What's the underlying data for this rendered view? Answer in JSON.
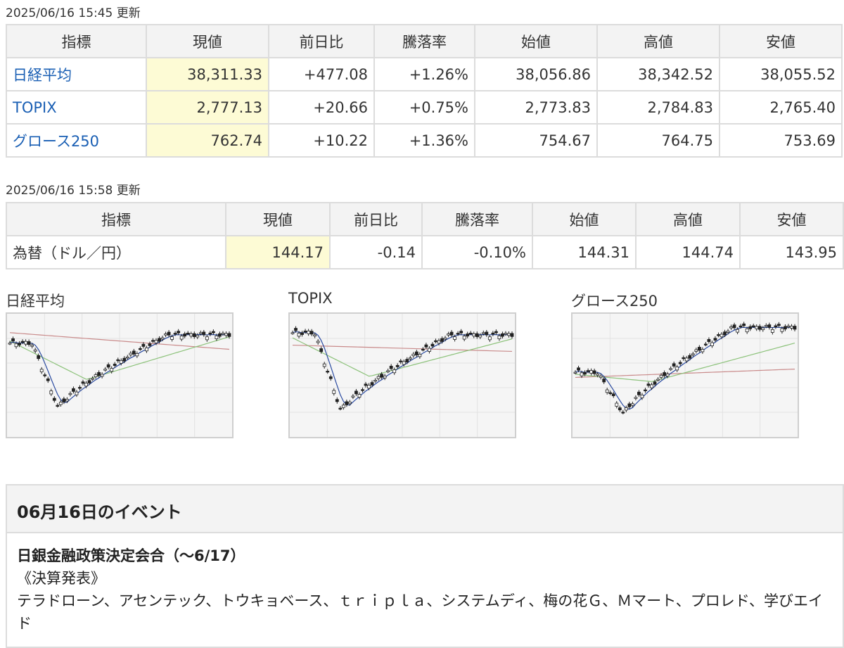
{
  "stock_table": {
    "timestamp": "2025/06/16 15:45 更新",
    "headers": [
      "指標",
      "現値",
      "前日比",
      "騰落率",
      "始値",
      "高値",
      "安値"
    ],
    "rows": [
      {
        "name": "日経平均",
        "current": "38,311.33",
        "change": "+477.08",
        "rate": "+1.26%",
        "open": "38,056.86",
        "high": "38,342.52",
        "low": "38,055.52"
      },
      {
        "name": "TOPIX",
        "current": "2,777.13",
        "change": "+20.66",
        "rate": "+0.75%",
        "open": "2,773.83",
        "high": "2,784.83",
        "low": "2,765.40"
      },
      {
        "name": "グロース250",
        "current": "762.74",
        "change": "+10.22",
        "rate": "+1.36%",
        "open": "754.67",
        "high": "764.75",
        "low": "753.69"
      }
    ]
  },
  "fx_table": {
    "timestamp": "2025/06/16 15:58 更新",
    "headers": [
      "指標",
      "現値",
      "前日比",
      "騰落率",
      "始値",
      "高値",
      "安値"
    ],
    "rows": [
      {
        "name": "為替（ドル／円）",
        "current": "144.17",
        "change": "-0.14",
        "rate": "-0.10%",
        "open": "144.31",
        "high": "144.74",
        "low": "143.95"
      }
    ]
  },
  "charts": [
    {
      "title": "日経平均"
    },
    {
      "title": "TOPIX"
    },
    {
      "title": "グロース250"
    }
  ],
  "colors": {
    "up": "#e0261e",
    "down": "#1a3fb4",
    "link": "#1a5fb4",
    "current_bg": "#fdfbd5",
    "ma_short": "#2a4aa0",
    "ma_mid": "#8cc27a",
    "ma_long": "#c98a8a"
  },
  "events": {
    "title": "06月16日のイベント",
    "headline": "日銀金融政策決定会合（～6/17）",
    "subheading": "《決算発表》",
    "companies": "テラドローン、アセンテック、トウキョベース、ｔｒｉｐｌａ、システムディ、梅の花Ｇ、Ｍマート、プロレド、学びエイド"
  }
}
